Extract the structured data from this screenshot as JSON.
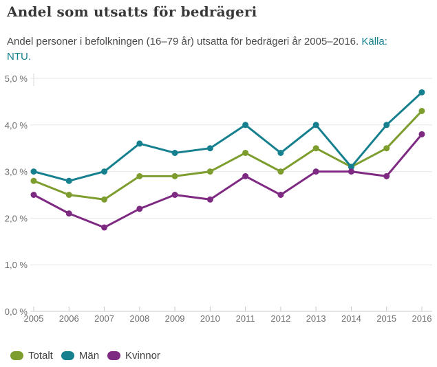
{
  "page": {
    "title": "Andel som utsatts för bedrägeri",
    "subtitle_text": "Andel personer i befolkningen (16–79 år) utsatta för bedrägeri år 2005–2016.",
    "source_label": "Källa:",
    "source_name": "NTU."
  },
  "colors": {
    "title_text": "#383838",
    "body_text": "#4a4a4a",
    "link": "#17808e",
    "gridline": "#e6e6e6",
    "axis_line": "#cccccc",
    "tick_label": "#6e6e6e",
    "totalt": "#7d9d2e",
    "man": "#16808e",
    "kvinnor": "#7f2a82"
  },
  "chart_data": {
    "type": "line",
    "title": "Andel som utsatts för bedrägeri",
    "xlabel": "",
    "ylabel": "",
    "x": [
      2005,
      2006,
      2007,
      2008,
      2009,
      2010,
      2011,
      2012,
      2013,
      2014,
      2015,
      2016
    ],
    "series": [
      {
        "name": "Totalt",
        "color": "#7d9d2e",
        "values": [
          2.8,
          2.5,
          2.4,
          2.9,
          2.9,
          3.0,
          3.4,
          3.0,
          3.5,
          3.1,
          3.5,
          4.3
        ]
      },
      {
        "name": "Män",
        "color": "#16808e",
        "values": [
          3.0,
          2.8,
          3.0,
          3.6,
          3.4,
          3.5,
          4.0,
          3.4,
          4.0,
          3.1,
          4.0,
          4.7
        ]
      },
      {
        "name": "Kvinnor",
        "color": "#7f2a82",
        "values": [
          2.5,
          2.1,
          1.8,
          2.2,
          2.5,
          2.4,
          2.9,
          2.5,
          3.0,
          3.0,
          2.9,
          3.8
        ]
      }
    ],
    "ylim": [
      0,
      5
    ],
    "ytick_step": 1.0,
    "ytick_labels": [
      "0,0 %",
      "1,0 %",
      "2,0 %",
      "3,0 %",
      "4,0 %",
      "5,0 %"
    ],
    "grid": true,
    "legend_position": "bottom"
  }
}
